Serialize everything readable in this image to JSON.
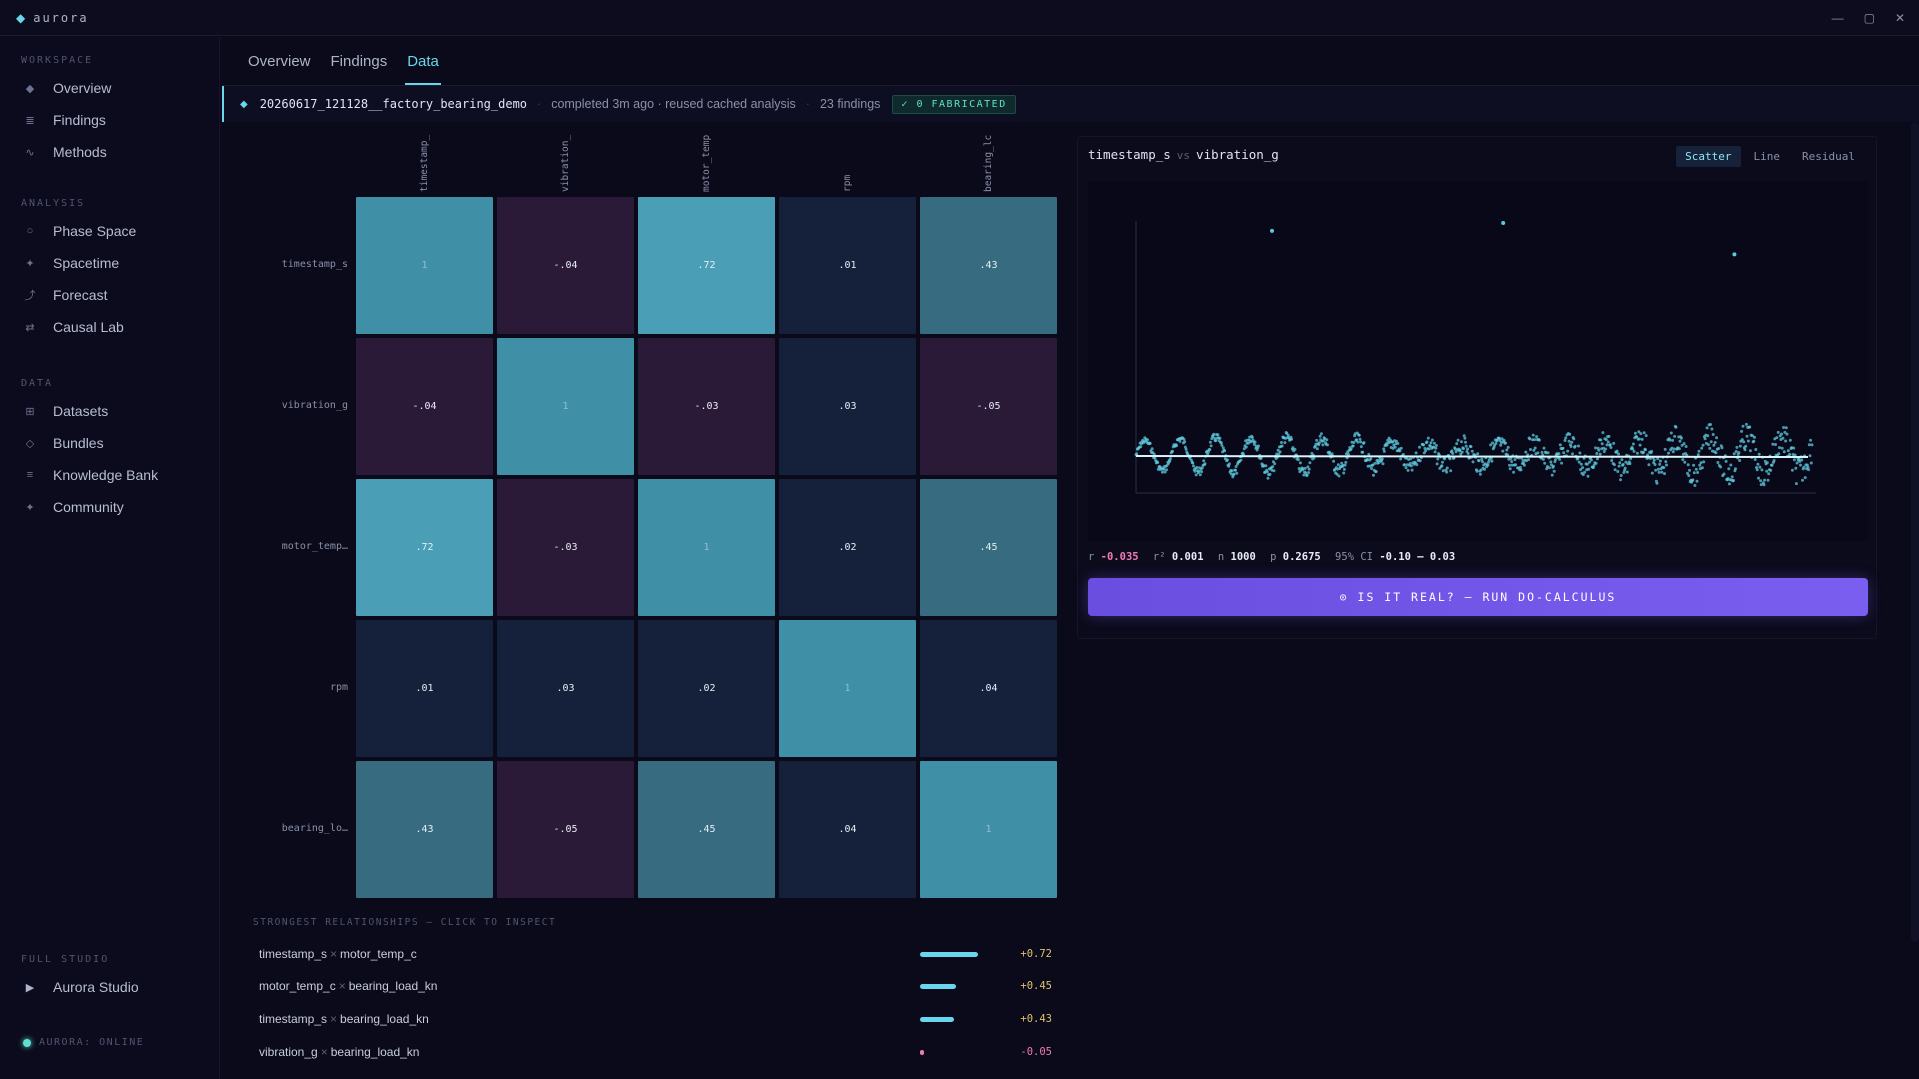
{
  "app": {
    "name": "aurora",
    "logo_icon": "diamond-icon"
  },
  "window_controls": [
    "—",
    "▢",
    "✕"
  ],
  "sidebar": {
    "sections": [
      {
        "label": "WORKSPACE",
        "items": [
          {
            "label": "Overview",
            "icon": "diamond-icon"
          },
          {
            "label": "Findings",
            "icon": "list-icon"
          },
          {
            "label": "Methods",
            "icon": "wave-icon"
          }
        ]
      },
      {
        "label": "ANALYSIS",
        "items": [
          {
            "label": "Phase Space",
            "icon": "circle-icon"
          },
          {
            "label": "Spacetime",
            "icon": "sparkle-icon"
          },
          {
            "label": "Forecast",
            "icon": "trend-icon"
          },
          {
            "label": "Causal Lab",
            "icon": "swap-icon"
          }
        ]
      },
      {
        "label": "DATA",
        "items": [
          {
            "label": "Datasets",
            "icon": "grid-icon"
          },
          {
            "label": "Bundles",
            "icon": "diamond-outline-icon"
          },
          {
            "label": "Knowledge Bank",
            "icon": "book-icon"
          },
          {
            "label": "Community",
            "icon": "star-icon"
          }
        ]
      },
      {
        "label": "FULL STUDIO",
        "items": [
          {
            "label": "Aurora Studio",
            "icon": "play-icon"
          }
        ]
      }
    ],
    "status": "AURORA: ONLINE"
  },
  "tabs": [
    {
      "label": "Overview",
      "active": false
    },
    {
      "label": "Findings",
      "active": false
    },
    {
      "label": "Data",
      "active": true
    }
  ],
  "run": {
    "id": "20260617_121128__factory_bearing_demo",
    "status": "completed 3m ago · reused cached analysis",
    "findings": "23 findings",
    "badge": "✓ 0 FABRICATED"
  },
  "heatmap": {
    "columns": [
      "timestamp_",
      "vibration_",
      "motor_temp",
      "rpm",
      "bearing_lc"
    ],
    "rows": [
      "timestamp_s",
      "vibration_g",
      "motor_temp…",
      "rpm",
      "bearing_lo…"
    ],
    "labels": [
      [
        "1",
        "-.04",
        ".72",
        ".01",
        ".43"
      ],
      [
        "-.04",
        "1",
        "-.03",
        ".03",
        "-.05"
      ],
      [
        ".72",
        "-.03",
        "1",
        ".02",
        ".45"
      ],
      [
        ".01",
        ".03",
        ".02",
        "1",
        ".04"
      ],
      [
        ".43",
        "-.05",
        ".45",
        ".04",
        "1"
      ]
    ],
    "values": [
      [
        1,
        -0.04,
        0.72,
        0.01,
        0.43
      ],
      [
        -0.04,
        1,
        -0.03,
        0.03,
        -0.05
      ],
      [
        0.72,
        -0.03,
        1,
        0.02,
        0.45
      ],
      [
        0.01,
        0.03,
        0.02,
        1,
        0.04
      ],
      [
        0.43,
        -0.05,
        0.45,
        0.04,
        1
      ]
    ]
  },
  "relationships": {
    "title": "STRONGEST RELATIONSHIPS — CLICK TO INSPECT",
    "items": [
      {
        "a": "timestamp_s",
        "b": "motor_temp_c",
        "value": "+0.72",
        "strength": 0.72,
        "color": "#6ad6ec"
      },
      {
        "a": "motor_temp_c",
        "b": "bearing_load_kn",
        "value": "+0.45",
        "strength": 0.45,
        "color": "#6ad6ec"
      },
      {
        "a": "timestamp_s",
        "b": "bearing_load_kn",
        "value": "+0.43",
        "strength": 0.43,
        "color": "#6ad6ec"
      },
      {
        "a": "vibration_g",
        "b": "bearing_load_kn",
        "value": "-0.05",
        "strength": 0.05,
        "color": "#f07ab8"
      }
    ]
  },
  "scatter": {
    "x_name": "timestamp_s",
    "vs": "vs",
    "y_name": "vibration_g",
    "modes": [
      {
        "label": "Scatter",
        "active": true
      },
      {
        "label": "Line",
        "active": false
      },
      {
        "label": "Residual",
        "active": false
      }
    ],
    "stats": {
      "r_label": "r",
      "r": "-0.035",
      "r2_label": "r²",
      "r2": "0.001",
      "n_label": "n",
      "n": "1000",
      "p_label": "p",
      "p": "0.2675",
      "ci_label": "95% CI",
      "ci": "-0.10 – 0.03"
    },
    "button": "⊙ IS IT REAL? — RUN DO-CALCULUS"
  },
  "chart_data": {
    "type": "scatter",
    "x_series": "timestamp_s",
    "y_series": "vibration_g",
    "n_points": 1000,
    "outliers": [
      [
        0.2,
        0.97
      ],
      [
        0.54,
        1.0
      ],
      [
        0.88,
        0.88
      ]
    ],
    "trend": "flat near baseline, oscillating band with amplitude ~0.1, noise increasing toward the right",
    "regression": {
      "r": -0.035,
      "r2": 0.001,
      "p": 0.2675,
      "ci95": [
        -0.1,
        0.03
      ]
    }
  },
  "colors": {
    "accent": "#6ad6ec",
    "negative": "#f07ab8",
    "button": "#7a5ef0",
    "bg": "#0a0a1a"
  }
}
